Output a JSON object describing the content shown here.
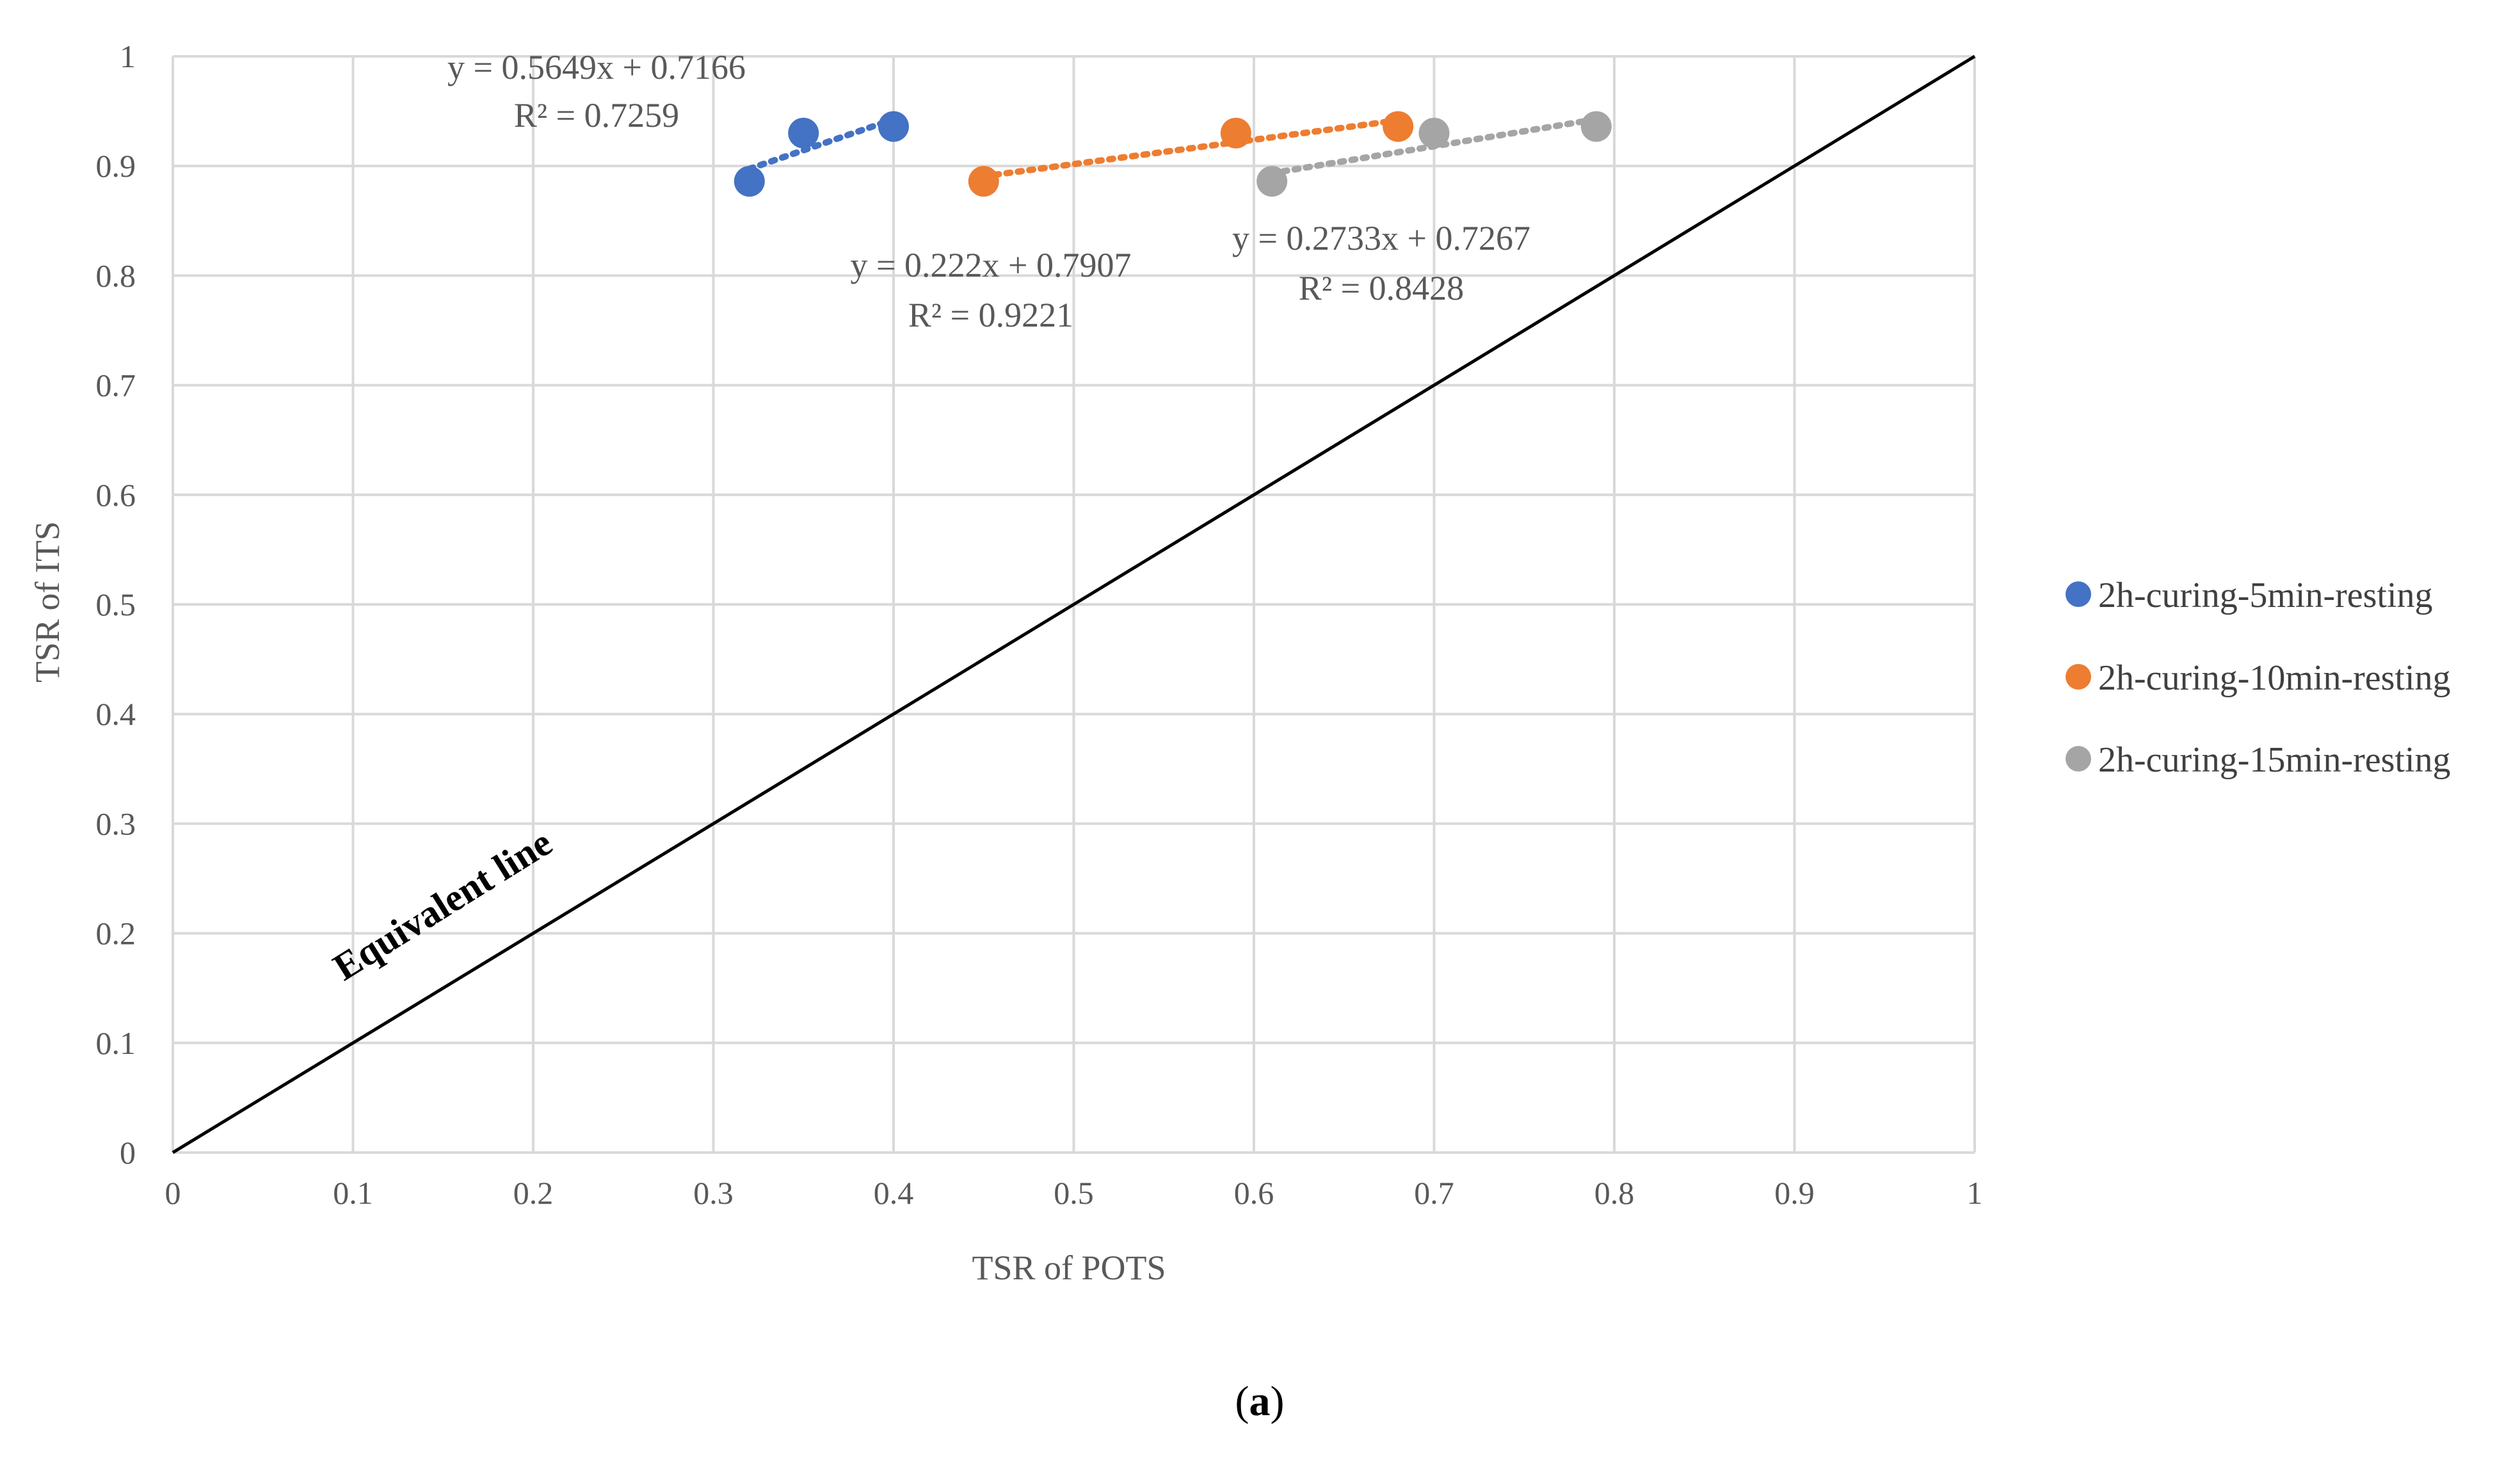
{
  "chart_data": {
    "type": "scatter",
    "title": "",
    "xlabel": "TSR of POTS",
    "ylabel": "TSR of ITS",
    "xlim": [
      0,
      1
    ],
    "ylim": [
      0,
      1
    ],
    "xticks": [
      "0",
      "0.1",
      "0.2",
      "0.3",
      "0.4",
      "0.5",
      "0.6",
      "0.7",
      "0.8",
      "0.9",
      "1"
    ],
    "yticks": [
      "0",
      "0.1",
      "0.2",
      "0.3",
      "0.4",
      "0.5",
      "0.6",
      "0.7",
      "0.8",
      "0.9",
      "1"
    ],
    "grid": true,
    "legend_position": "right",
    "series": [
      {
        "name": "2h-curing-5min-resting",
        "color": "#4472C4",
        "points": [
          {
            "x": 0.32,
            "y": 0.886
          },
          {
            "x": 0.35,
            "y": 0.93
          },
          {
            "x": 0.4,
            "y": 0.936
          }
        ],
        "trendline": {
          "type": "linear",
          "equation": "y = 0.5649x + 0.7166",
          "r2": "R² = 0.7259",
          "slope": 0.5649,
          "intercept": 0.7166,
          "x_range": [
            0.32,
            0.4
          ]
        }
      },
      {
        "name": "2h-curing-10min-resting",
        "color": "#ED7D31",
        "points": [
          {
            "x": 0.45,
            "y": 0.886
          },
          {
            "x": 0.59,
            "y": 0.93
          },
          {
            "x": 0.68,
            "y": 0.936
          }
        ],
        "trendline": {
          "type": "linear",
          "equation": "y = 0.222x + 0.7907",
          "r2": "R² = 0.9221",
          "slope": 0.222,
          "intercept": 0.7907,
          "x_range": [
            0.45,
            0.68
          ]
        }
      },
      {
        "name": "2h-curing-15min-resting",
        "color": "#A5A5A5",
        "points": [
          {
            "x": 0.61,
            "y": 0.886
          },
          {
            "x": 0.7,
            "y": 0.93
          },
          {
            "x": 0.79,
            "y": 0.936
          }
        ],
        "trendline": {
          "type": "linear",
          "equation": "y = 0.2733x + 0.7267",
          "r2": "R² = 0.8428",
          "slope": 0.2733,
          "intercept": 0.7267,
          "x_range": [
            0.61,
            0.79
          ]
        }
      }
    ],
    "reference_line": {
      "label": "Equivalent line",
      "from": [
        0,
        0
      ],
      "to": [
        1,
        1
      ]
    }
  },
  "caption": {
    "open": "(",
    "letter": "a",
    "close": ")"
  }
}
